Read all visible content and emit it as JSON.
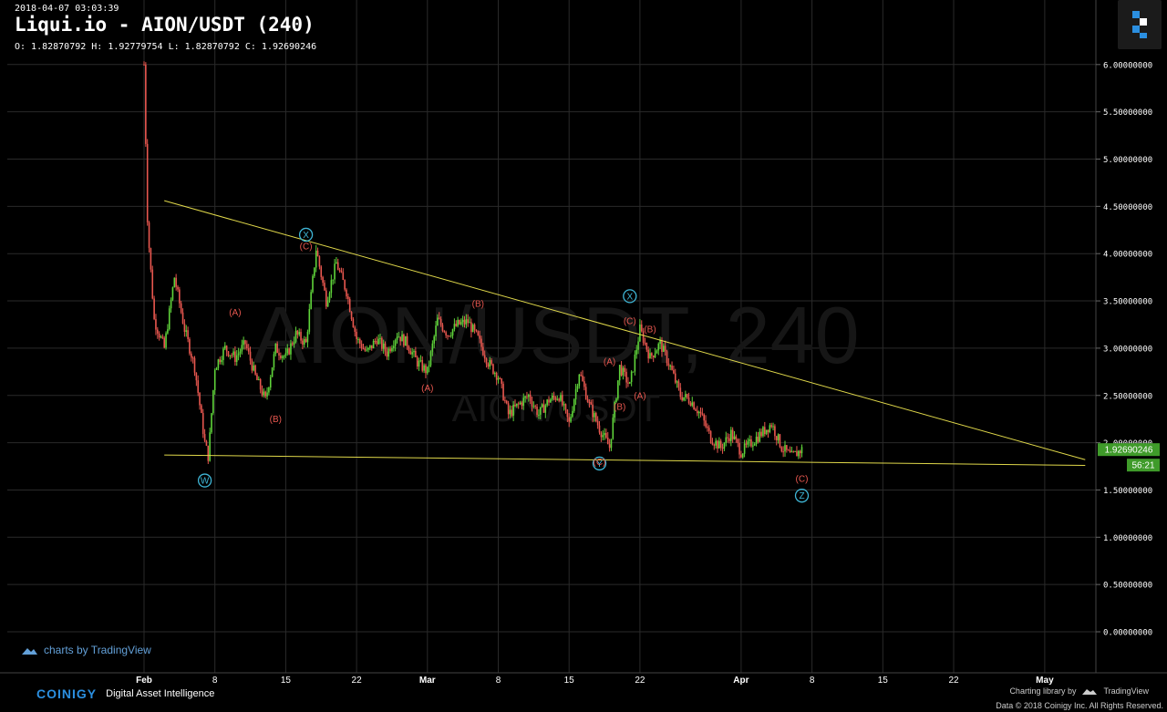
{
  "header": {
    "timestamp": "2018-04-07 03:03:39",
    "title": "Liqui.io - AION/USDT (240)",
    "ohlc": "O: 1.82870792 H: 1.92779754 L: 1.82870792 C: 1.92690246"
  },
  "watermark": {
    "line1": "AION/USDT, 240",
    "line2": "AION/USDT"
  },
  "branding": {
    "tradingview_link": "charts by TradingView",
    "coinigy": "COINIGY",
    "tagline": "Digital Asset Intelligence",
    "charting_library": "Charting library by",
    "tradingview": "TradingView",
    "data_credit": "Data © 2018  Coinigy Inc. All Rights Reserved."
  },
  "colors": {
    "up": "#5fd33a",
    "down": "#e8574f",
    "trendline": "#e0d84a",
    "wave_circle": "#3fb6d6",
    "wave_label": "#e8574f",
    "grid": "#2a2a2a",
    "price_tag": "#3f9b2a"
  },
  "chart_data": {
    "type": "candlestick",
    "x_tick_labels": [
      "Feb",
      "8",
      "15",
      "22",
      "Mar",
      "8",
      "15",
      "22",
      "Apr",
      "8",
      "15",
      "22",
      "May"
    ],
    "y_tick_labels": [
      "0.00000000",
      "0.50000000",
      "1.00000000",
      "1.50000000",
      "2.00000000",
      "2.50000000",
      "3.00000000",
      "3.50000000",
      "4.00000000",
      "4.50000000",
      "5.00000000",
      "5.50000000",
      "6.00000000"
    ],
    "ylim": [
      -0.25,
      6.12
    ],
    "last_price": "1.92690246",
    "countdown": "56:21",
    "price_path": [
      [
        "2018-02-01",
        6.0
      ],
      [
        "2018-02-01",
        4.3
      ],
      [
        "2018-02-02",
        3.3
      ],
      [
        "2018-02-03",
        3.0
      ],
      [
        "2018-02-04",
        3.75
      ],
      [
        "2018-02-05",
        3.2
      ],
      [
        "2018-02-06",
        2.8
      ],
      [
        "2018-02-07",
        2.0
      ],
      [
        "2018-02-07",
        1.85
      ],
      [
        "2018-02-08",
        2.8
      ],
      [
        "2018-02-09",
        3.0
      ],
      [
        "2018-02-10",
        2.9
      ],
      [
        "2018-02-11",
        3.05
      ],
      [
        "2018-02-12",
        2.7
      ],
      [
        "2018-02-13",
        2.45
      ],
      [
        "2018-02-14",
        3.0
      ],
      [
        "2018-02-15",
        2.9
      ],
      [
        "2018-02-16",
        3.15
      ],
      [
        "2018-02-17",
        3.05
      ],
      [
        "2018-02-18",
        4.05
      ],
      [
        "2018-02-19",
        3.5
      ],
      [
        "2018-02-20",
        3.9
      ],
      [
        "2018-02-21",
        3.6
      ],
      [
        "2018-02-22",
        3.1
      ],
      [
        "2018-02-23",
        2.95
      ],
      [
        "2018-02-24",
        3.1
      ],
      [
        "2018-02-25",
        2.95
      ],
      [
        "2018-02-26",
        3.15
      ],
      [
        "2018-02-27",
        3.05
      ],
      [
        "2018-02-28",
        2.85
      ],
      [
        "2018-03-01",
        2.75
      ],
      [
        "2018-03-02",
        3.3
      ],
      [
        "2018-03-03",
        3.15
      ],
      [
        "2018-03-04",
        3.25
      ],
      [
        "2018-03-05",
        3.28
      ],
      [
        "2018-03-06",
        3.1
      ],
      [
        "2018-03-07",
        2.85
      ],
      [
        "2018-03-08",
        2.7
      ],
      [
        "2018-03-09",
        2.3
      ],
      [
        "2018-03-10",
        2.4
      ],
      [
        "2018-03-11",
        2.5
      ],
      [
        "2018-03-12",
        2.3
      ],
      [
        "2018-03-13",
        2.45
      ],
      [
        "2018-03-14",
        2.5
      ],
      [
        "2018-03-15",
        2.2
      ],
      [
        "2018-03-16",
        2.75
      ],
      [
        "2018-03-17",
        2.4
      ],
      [
        "2018-03-18",
        2.15
      ],
      [
        "2018-03-19",
        1.95
      ],
      [
        "2018-03-20",
        2.8
      ],
      [
        "2018-03-21",
        2.6
      ],
      [
        "2018-03-22",
        3.2
      ],
      [
        "2018-03-23",
        2.9
      ],
      [
        "2018-03-24",
        3.05
      ],
      [
        "2018-03-25",
        2.8
      ],
      [
        "2018-03-26",
        2.5
      ],
      [
        "2018-03-27",
        2.45
      ],
      [
        "2018-03-28",
        2.3
      ],
      [
        "2018-03-29",
        2.05
      ],
      [
        "2018-03-30",
        1.95
      ],
      [
        "2018-03-31",
        2.1
      ],
      [
        "2018-04-01",
        1.9
      ],
      [
        "2018-04-02",
        2.0
      ],
      [
        "2018-04-03",
        2.1
      ],
      [
        "2018-04-04",
        2.2
      ],
      [
        "2018-04-05",
        1.95
      ],
      [
        "2018-04-06",
        1.85
      ],
      [
        "2018-04-07",
        1.93
      ]
    ],
    "trendlines": [
      {
        "from": [
          "2018-02-03",
          4.56
        ],
        "to": [
          "2018-05-05",
          1.82
        ]
      },
      {
        "from": [
          "2018-02-03",
          1.87
        ],
        "to": [
          "2018-05-05",
          1.76
        ]
      }
    ],
    "annotations": [
      {
        "label": "W",
        "style": "circle",
        "date": "2018-02-07",
        "y": 1.6
      },
      {
        "label": "X",
        "style": "circle",
        "date": "2018-02-17",
        "y": 4.2
      },
      {
        "label": "X",
        "style": "circle",
        "date": "2018-03-21",
        "y": 3.55
      },
      {
        "label": "Y",
        "style": "circle",
        "date": "2018-03-18",
        "y": 1.78
      },
      {
        "label": "Z",
        "style": "circle",
        "date": "2018-04-07",
        "y": 1.44
      },
      {
        "label": "(A)",
        "style": "text",
        "date": "2018-02-10",
        "y": 3.38
      },
      {
        "label": "(B)",
        "style": "text",
        "date": "2018-02-14",
        "y": 2.25
      },
      {
        "label": "(C)",
        "style": "text",
        "date": "2018-02-17",
        "y": 4.08
      },
      {
        "label": "(A)",
        "style": "text",
        "date": "2018-03-01",
        "y": 2.58
      },
      {
        "label": "(B)",
        "style": "text",
        "date": "2018-03-06",
        "y": 3.47
      },
      {
        "label": "(A)",
        "style": "text",
        "date": "2018-03-19",
        "y": 2.86
      },
      {
        "label": "(B)",
        "style": "text",
        "date": "2018-03-20",
        "y": 2.38
      },
      {
        "label": "(C)",
        "style": "text",
        "date": "2018-03-18",
        "y": 1.8
      },
      {
        "label": "(C)",
        "style": "text",
        "date": "2018-03-21",
        "y": 3.29
      },
      {
        "label": "(A)",
        "style": "text",
        "date": "2018-03-22",
        "y": 2.5
      },
      {
        "label": "(B)",
        "style": "text",
        "date": "2018-03-23",
        "y": 3.2
      },
      {
        "label": "(C)",
        "style": "text",
        "date": "2018-04-07",
        "y": 1.62
      }
    ]
  }
}
